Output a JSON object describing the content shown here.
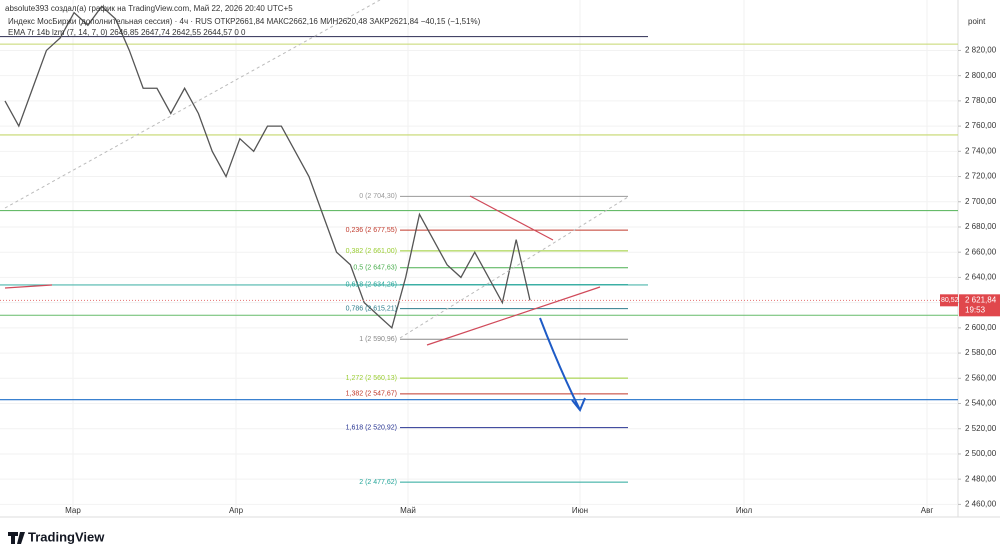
{
  "chart_data": {
    "type": "line",
    "header": "absolute393 создал(а) график на TradingView.com, Май 22, 2026 20:40 UTC+5",
    "legend": "Индекс МосБиржи (дополнительная сессия) · 4ч · RUS  ОТКР2661,84 МАКС2662,16 МИН2620,48 ЗАКР2621,84 −40,15 (−1,51%)",
    "indicator": "EMA 7r 14b lzm (7, 14, 7, 0)  2646,85  2647,74  2642,55  2644,57  0  0",
    "axis_unit": "point",
    "brand": "TradingView",
    "x_labels": [
      "Мар",
      "Апр",
      "Май",
      "Июн",
      "Июл",
      "Авг"
    ],
    "series": [
      {
        "name": "Индекс МосБиржи",
        "color": "#555555",
        "values": [
          2780,
          2760,
          2790,
          2820,
          2830,
          2850,
          2840,
          2855,
          2845,
          2820,
          2790,
          2790,
          2770,
          2790,
          2770,
          2740,
          2720,
          2750,
          2740,
          2760,
          2760,
          2740,
          2720,
          2690,
          2660,
          2650,
          2620,
          2610,
          2600,
          2640,
          2690,
          2670,
          2650,
          2640,
          2660,
          2640,
          2620,
          2670,
          2621.84
        ]
      }
    ],
    "ylim": [
      2450,
      2860
    ],
    "yticks": [
      {
        "value": 2460,
        "label": "2 460,00"
      },
      {
        "value": 2480,
        "label": "2 480,00"
      },
      {
        "value": 2500,
        "label": "2 500,00"
      },
      {
        "value": 2520,
        "label": "2 520,00"
      },
      {
        "value": 2540,
        "label": "2 540,00"
      },
      {
        "value": 2560,
        "label": "2 560,00"
      },
      {
        "value": 2580,
        "label": "2 580,00"
      },
      {
        "value": 2600,
        "label": "2 600,00"
      },
      {
        "value": 2620,
        "label": "2 620,00"
      },
      {
        "value": 2640,
        "label": "2 640,00"
      },
      {
        "value": 2660,
        "label": "2 660,00"
      },
      {
        "value": 2680,
        "label": "2 680,00"
      },
      {
        "value": 2700,
        "label": "2 700,00"
      },
      {
        "value": 2720,
        "label": "2 720,00"
      },
      {
        "value": 2740,
        "label": "2 740,00"
      },
      {
        "value": 2760,
        "label": "2 760,00"
      },
      {
        "value": 2780,
        "label": "2 780,00"
      },
      {
        "value": 2800,
        "label": "2 800,00"
      },
      {
        "value": 2820,
        "label": "2 820,00"
      }
    ],
    "grid": true,
    "last_price": {
      "value": 2621.84,
      "label": "2 621,84"
    },
    "countdown": "19:53",
    "side_tag": "80,52",
    "levels": [
      {
        "value": 2831,
        "color": "#444466"
      },
      {
        "value": 2825,
        "color": "#c5d86d"
      },
      {
        "value": 2753,
        "color": "#c5d86d"
      },
      {
        "value": 2693,
        "color": "#66bb6a"
      },
      {
        "value": 2634,
        "color": "#4db6ac"
      },
      {
        "value": 2610,
        "color": "#66bb6a"
      },
      {
        "value": 2543,
        "color": "#1e6fc9"
      }
    ],
    "fib": [
      {
        "value": 2704.3,
        "label": "0 (2 704,30)",
        "color": "#999999"
      },
      {
        "value": 2677.55,
        "label": "0,236 (2 677,55)",
        "color": "#c0392b"
      },
      {
        "value": 2661,
        "label": "0,382 (2 661,00)",
        "color": "#9acd32"
      },
      {
        "value": 2647.63,
        "label": "0,5 (2 647,63)",
        "color": "#4caf50"
      },
      {
        "value": 2634.26,
        "label": "0,618 (2 634,26)",
        "color": "#26a69a"
      },
      {
        "value": 2615.21,
        "label": "0,786 (2 615,21)",
        "color": "#2e7d8c"
      },
      {
        "value": 2590.96,
        "label": "1 (2 590,96)",
        "color": "#888888"
      },
      {
        "value": 2560.13,
        "label": "1,272 (2 560,13)",
        "color": "#9acd32"
      },
      {
        "value": 2547.67,
        "label": "1,382 (2 547,67)",
        "color": "#c0392b"
      },
      {
        "value": 2520.92,
        "label": "1,618 (2 520,92)",
        "color": "#283593"
      },
      {
        "value": 2477.62,
        "label": "2 (2 477,62)",
        "color": "#26a69a"
      }
    ]
  }
}
